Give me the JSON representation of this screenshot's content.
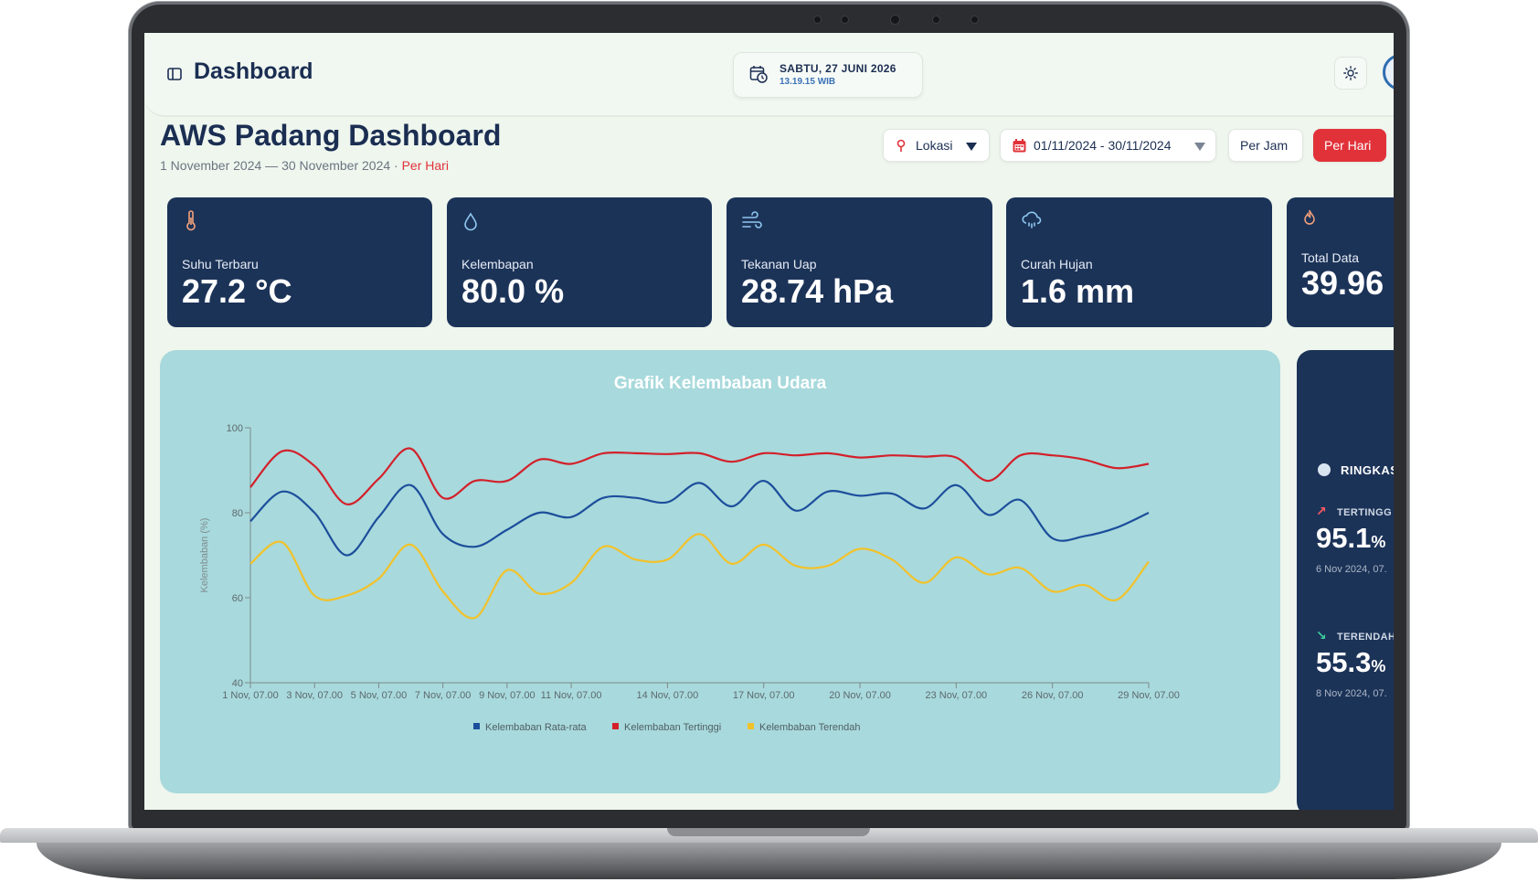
{
  "header": {
    "title": "Dashboard",
    "date": "SABTU, 27 JUNI 2026",
    "time": "13.19.15 WIB"
  },
  "page": {
    "title": "AWS Padang Dashboard",
    "subtitle_range": "1 November 2024 — 30 November 2024 · ",
    "subtitle_mode": "Per Hari"
  },
  "controls": {
    "location": "Lokasi",
    "date_range": "01/11/2024 - 30/11/2024",
    "per_jam": "Per Jam",
    "per_hari": "Per Hari"
  },
  "cards": [
    {
      "label": "Suhu Terbaru",
      "value": "27.2 °C",
      "icon": "thermometer-icon",
      "icon_color": "#f4a27a"
    },
    {
      "label": "Kelembapan",
      "value": "80.0 %",
      "icon": "droplet-icon",
      "icon_color": "#8ec7f0"
    },
    {
      "label": "Tekanan Uap",
      "value": "28.74 hPa",
      "icon": "wind-icon",
      "icon_color": "#8ec7f0"
    },
    {
      "label": "Curah Hujan",
      "value": "1.6 mm",
      "icon": "cloud-rain-icon",
      "icon_color": "#8ec7f0"
    },
    {
      "label": "Total Data",
      "value": "39.96",
      "icon": "flame-icon",
      "icon_color": "#f4a27a"
    }
  ],
  "summary": {
    "heading": "RINGKAS",
    "highest_label": "TERTINGG",
    "highest_value": "95.1",
    "highest_unit": "%",
    "highest_date": "6 Nov 2024, 07.",
    "lowest_label": "TERENDAH",
    "lowest_value": "55.3",
    "lowest_unit": "%",
    "lowest_date": "8 Nov 2024, 07."
  },
  "colors": {
    "navy": "#1c3358",
    "accent_red": "#e1323a",
    "chart_bg": "#a8d9dc",
    "series_avg": "#1c4e9c",
    "series_max": "#d3202a",
    "series_min": "#f2c22a"
  },
  "chart_data": {
    "type": "line",
    "title": "Grafik Kelembaban Udara",
    "ylabel": "Kelembaban (%)",
    "ylim": [
      40,
      100
    ],
    "yticks": [
      40,
      60,
      80,
      100
    ],
    "x": [
      "1 Nov, 07.00",
      "2 Nov, 07.00",
      "3 Nov, 07.00",
      "4 Nov, 07.00",
      "5 Nov, 07.00",
      "6 Nov, 07.00",
      "7 Nov, 07.00",
      "8 Nov, 07.00",
      "9 Nov, 07.00",
      "10 Nov, 07.00",
      "11 Nov, 07.00",
      "12 Nov, 07.00",
      "13 Nov, 07.00",
      "14 Nov, 07.00",
      "15 Nov, 07.00",
      "16 Nov, 07.00",
      "17 Nov, 07.00",
      "18 Nov, 07.00",
      "19 Nov, 07.00",
      "20 Nov, 07.00",
      "21 Nov, 07.00",
      "22 Nov, 07.00",
      "23 Nov, 07.00",
      "24 Nov, 07.00",
      "25 Nov, 07.00",
      "26 Nov, 07.00",
      "27 Nov, 07.00",
      "28 Nov, 07.00",
      "29 Nov, 07.00"
    ],
    "x_tick_labels": [
      "1 Nov, 07.00",
      "3 Nov, 07.00",
      "5 Nov, 07.00",
      "7 Nov, 07.00",
      "9 Nov, 07.00",
      "11 Nov, 07.00",
      "14 Nov, 07.00",
      "17 Nov, 07.00",
      "20 Nov, 07.00",
      "23 Nov, 07.00",
      "26 Nov, 07.00",
      "29 Nov, 07.00"
    ],
    "series": [
      {
        "name": "Kelembaban Rata-rata",
        "color": "#1c4e9c",
        "values": [
          78,
          85,
          80,
          70,
          79,
          86.5,
          75,
          72,
          76,
          80,
          79,
          83.5,
          83.5,
          82.5,
          87,
          81.5,
          87.5,
          80.5,
          85,
          84,
          84.5,
          81,
          86.5,
          79.5,
          83,
          74,
          74.5,
          76.5,
          80
        ]
      },
      {
        "name": "Kelembaban Tertinggi",
        "color": "#d3202a",
        "values": [
          86,
          94.5,
          91,
          82,
          88,
          95.1,
          83.5,
          87.5,
          87.5,
          92.5,
          91.5,
          94,
          94,
          93.8,
          94,
          92,
          94,
          93.5,
          94,
          93,
          93.5,
          93.2,
          93,
          87.5,
          93.5,
          93.5,
          92.5,
          90.5,
          91.5
        ]
      },
      {
        "name": "Kelembaban Terendah",
        "color": "#f2c22a",
        "values": [
          68,
          73,
          60.5,
          60.5,
          64.5,
          72.5,
          61.5,
          55.3,
          66.5,
          61,
          63.5,
          72,
          69,
          69,
          75,
          68,
          72.5,
          67.5,
          67.5,
          71.5,
          69,
          63.5,
          69.5,
          65.5,
          67,
          61.5,
          63,
          59.5,
          68.5
        ]
      }
    ],
    "legend": "bottom",
    "grid": false
  }
}
